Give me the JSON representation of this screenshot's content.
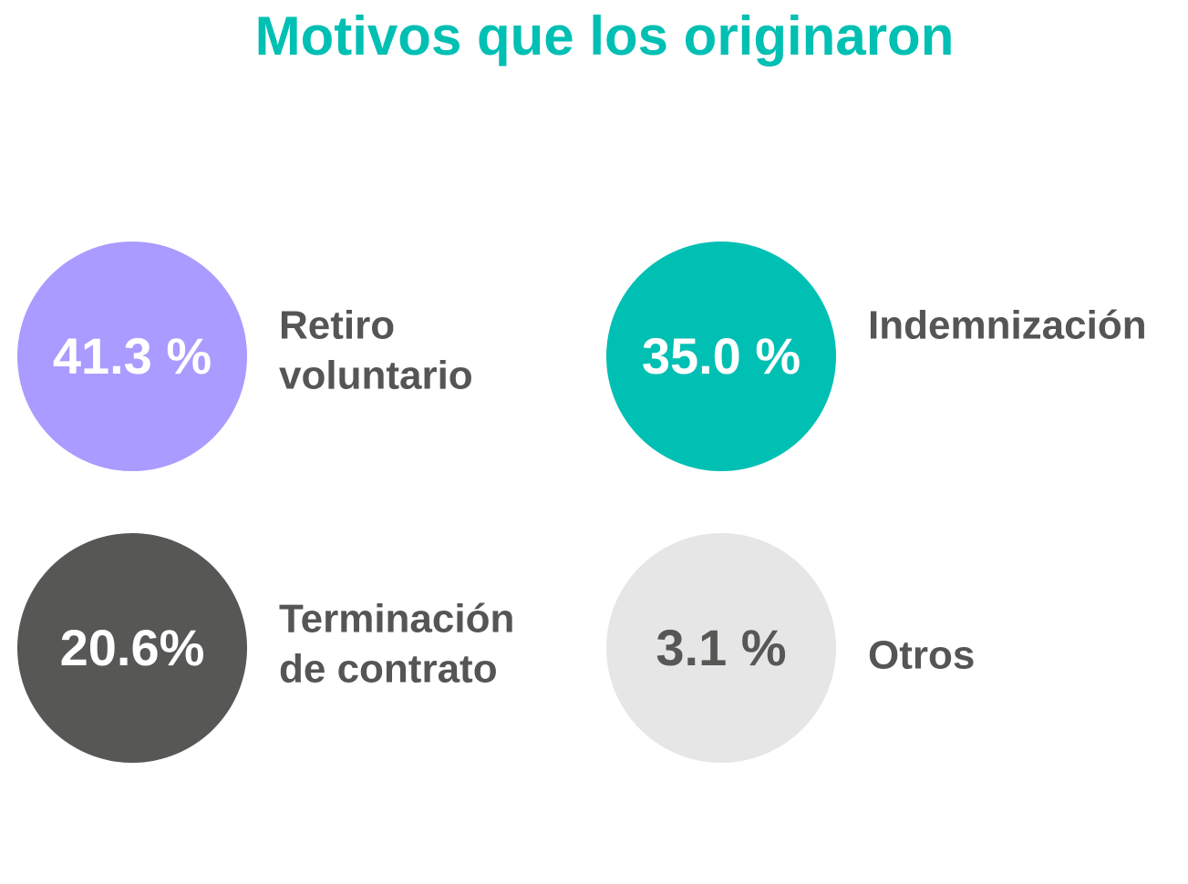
{
  "title": "Motivos que los originaron",
  "items": [
    {
      "value_label": "41.3 %",
      "label": [
        "Retiro",
        "voluntario"
      ],
      "color": "#a99bff",
      "text_color": "#ffffff"
    },
    {
      "value_label": "35.0 %",
      "label": [
        "Indemnización"
      ],
      "color": "#00bfb3",
      "text_color": "#ffffff"
    },
    {
      "value_label": "20.6%",
      "label": [
        "Terminación",
        "de contrato"
      ],
      "color": "#575756",
      "text_color": "#ffffff"
    },
    {
      "value_label": "3.1 %",
      "label": [
        "Otros"
      ],
      "color": "#e6e6e6",
      "text_color": "#575756"
    }
  ]
}
